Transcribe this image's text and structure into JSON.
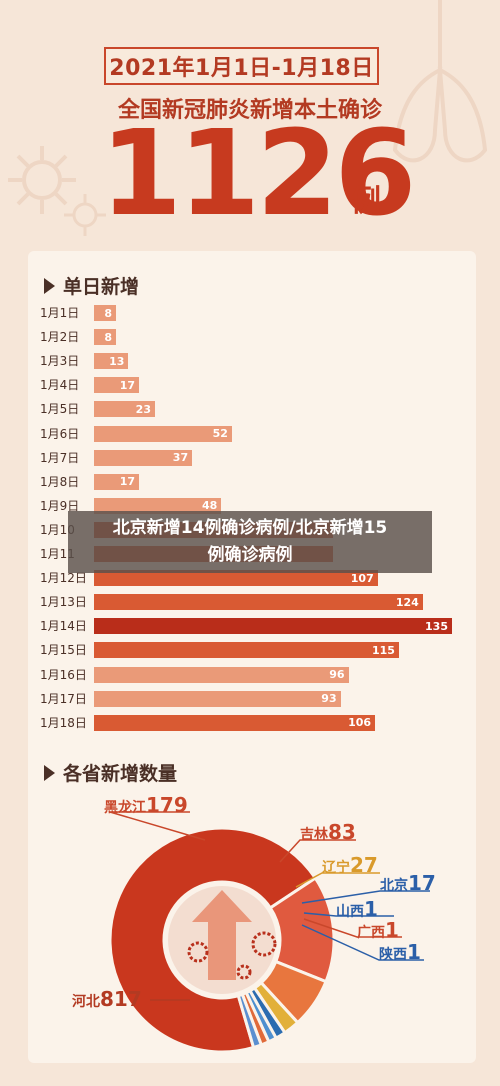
{
  "header": {
    "date_range": "2021年1月1日-1月18日",
    "subtitle": "全国新冠肺炎新增本土确诊",
    "total": "1126",
    "total_unit": "例"
  },
  "overlay": {
    "line1": "北京新增14例确诊病例/北京新增15",
    "line2": "例确诊病例"
  },
  "colors": {
    "light_bar": "#ea9a78",
    "medium_bar": "#d95a33",
    "dark_bar": "#b92d1a",
    "text_dark": "#4a2f26",
    "accent": "#c73a1f"
  },
  "chart_data": [
    {
      "type": "bar",
      "orientation": "horizontal",
      "title": "单日新增",
      "categories": [
        "1月1日",
        "1月2日",
        "1月3日",
        "1月4日",
        "1月5日",
        "1月6日",
        "1月7日",
        "1月8日",
        "1月9日",
        "1月10日",
        "1月11日",
        "1月12日",
        "1月13日",
        "1月14日",
        "1月15日",
        "1月16日",
        "1月17日",
        "1月18日"
      ],
      "category_labels_visible": [
        "1月1日",
        "1月2日",
        "1月3日",
        "1月4日",
        "1月5日",
        "1月6日",
        "1月7日",
        "1月8日",
        "1月9日",
        "1月10",
        "1月11",
        "1月12日",
        "1月13日",
        "1月14日",
        "1月15日",
        "1月16日",
        "1月17日",
        "1月18日"
      ],
      "values": [
        8,
        8,
        13,
        17,
        23,
        52,
        37,
        17,
        48,
        null,
        null,
        107,
        124,
        135,
        115,
        96,
        93,
        106
      ],
      "value_labels_visible": [
        "8",
        "8",
        "13",
        "17",
        "23",
        "52",
        "37",
        "17",
        "48",
        "",
        "",
        "107",
        "124",
        "135",
        "115",
        "96",
        "93",
        "106"
      ],
      "bar_tone": [
        "light",
        "light",
        "light",
        "light",
        "light",
        "light",
        "light",
        "light",
        "light",
        "medium",
        "medium",
        "medium",
        "medium",
        "dark",
        "medium",
        "light",
        "light",
        "medium"
      ],
      "xlim": [
        0,
        135
      ]
    },
    {
      "type": "pie",
      "style": "donut",
      "title": "各省新增数量",
      "slices": [
        {
          "name": "河北",
          "value": 817,
          "color": "#c9371e"
        },
        {
          "name": "黑龙江",
          "value": 179,
          "color": "#e05a3f"
        },
        {
          "name": "吉林",
          "value": 83,
          "color": "#e8763e"
        },
        {
          "name": "辽宁",
          "value": 27,
          "color": "#e2b03a"
        },
        {
          "name": "北京",
          "value": 17,
          "color": "#2b6cb0"
        },
        {
          "name": "山西",
          "value": 1,
          "color": "#4e8fcf"
        },
        {
          "name": "广西",
          "value": 1,
          "color": "#e06a3a"
        },
        {
          "name": "陕西",
          "value": 1,
          "color": "#5b8fd0"
        }
      ]
    }
  ]
}
